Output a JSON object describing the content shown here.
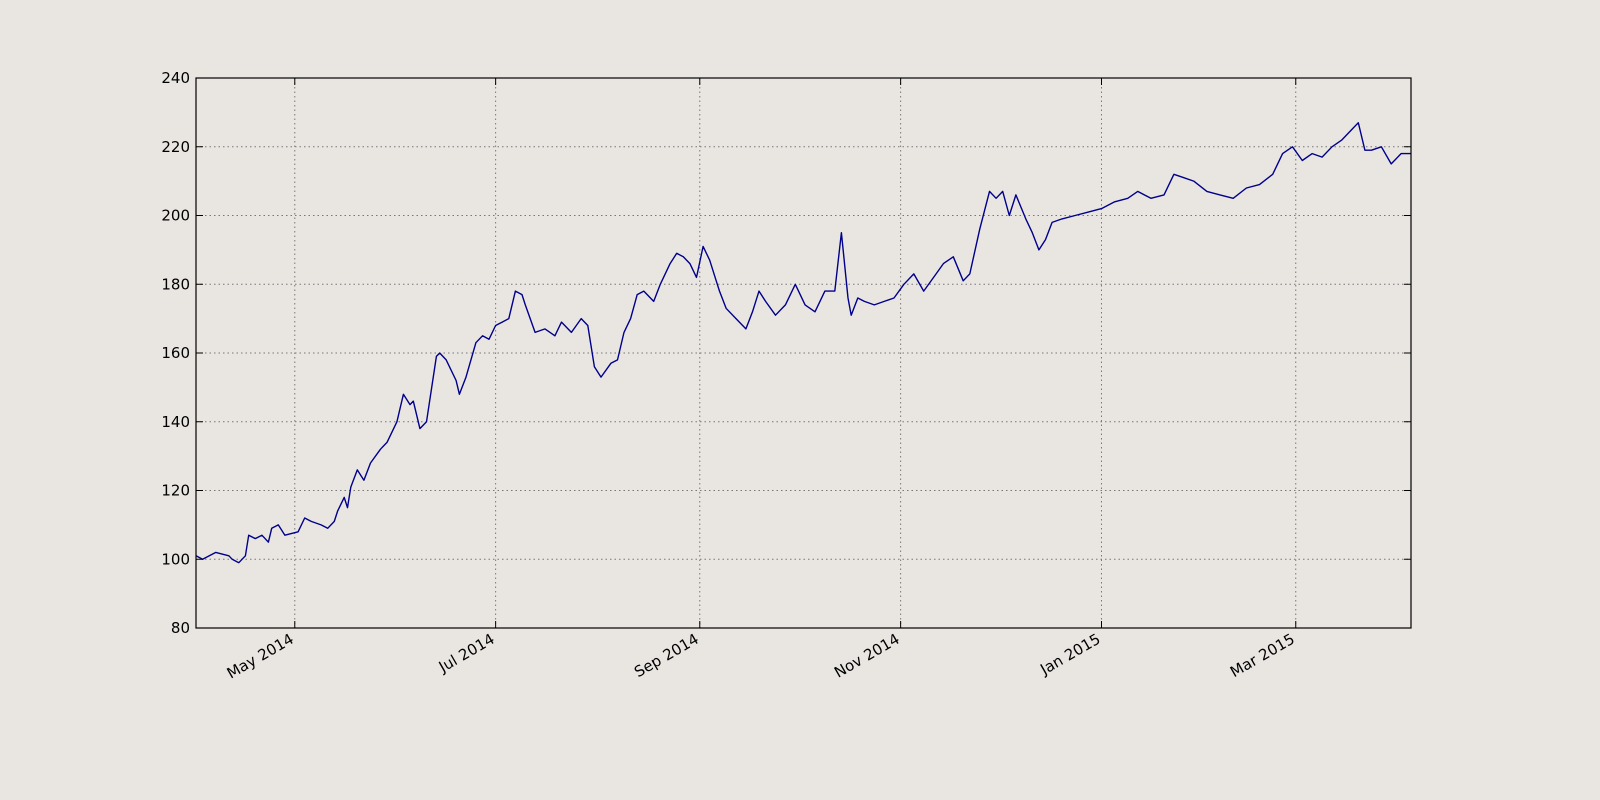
{
  "chart_data": {
    "type": "line",
    "title": "",
    "xlabel": "",
    "ylabel": "",
    "grid": true,
    "ylim": [
      80,
      240
    ],
    "xlim": [
      "2014-04-01",
      "2015-04-05"
    ],
    "yticks": [
      80,
      100,
      120,
      140,
      160,
      180,
      200,
      220,
      240
    ],
    "yticklabels": [
      "80",
      "100",
      "120",
      "140",
      "160",
      "180",
      "200",
      "220",
      "240"
    ],
    "xticks": [
      "2014-05-01",
      "2014-07-01",
      "2014-09-01",
      "2014-11-01",
      "2015-01-01",
      "2015-03-01"
    ],
    "xticklabels": [
      "May 2014",
      "Jul 2014",
      "Sep 2014",
      "Nov 2014",
      "Jan 2015",
      "Mar 2015"
    ],
    "colors": {
      "line": "#00008b",
      "background": "#e9e6e2",
      "axes": "#000000",
      "grid": "#777777"
    },
    "series": [
      {
        "x": [
          "2014-04-01",
          "2014-04-03",
          "2014-04-07",
          "2014-04-11",
          "2014-04-12",
          "2014-04-14",
          "2014-04-16",
          "2014-04-17",
          "2014-04-19",
          "2014-04-21",
          "2014-04-23",
          "2014-04-24",
          "2014-04-26",
          "2014-04-28",
          "2014-05-02",
          "2014-05-04",
          "2014-05-06",
          "2014-05-09",
          "2014-05-11",
          "2014-05-13",
          "2014-05-14",
          "2014-05-16",
          "2014-05-17",
          "2014-05-18",
          "2014-05-20",
          "2014-05-22",
          "2014-05-24",
          "2014-05-27",
          "2014-05-29",
          "2014-06-01",
          "2014-06-03",
          "2014-06-05",
          "2014-06-06",
          "2014-06-08",
          "2014-06-10",
          "2014-06-13",
          "2014-06-14",
          "2014-06-16",
          "2014-06-19",
          "2014-06-20",
          "2014-06-22",
          "2014-06-25",
          "2014-06-27",
          "2014-06-29",
          "2014-07-01",
          "2014-07-03",
          "2014-07-05",
          "2014-07-07",
          "2014-07-09",
          "2014-07-10",
          "2014-07-13",
          "2014-07-16",
          "2014-07-19",
          "2014-07-21",
          "2014-07-24",
          "2014-07-27",
          "2014-07-29",
          "2014-07-31",
          "2014-08-02",
          "2014-08-05",
          "2014-08-07",
          "2014-08-09",
          "2014-08-11",
          "2014-08-13",
          "2014-08-15",
          "2014-08-18",
          "2014-08-20",
          "2014-08-23",
          "2014-08-25",
          "2014-08-27",
          "2014-08-29",
          "2014-08-31",
          "2014-09-02",
          "2014-09-04",
          "2014-09-06",
          "2014-09-07",
          "2014-09-09",
          "2014-09-12",
          "2014-09-15",
          "2014-09-17",
          "2014-09-19",
          "2014-09-21",
          "2014-09-24",
          "2014-09-27",
          "2014-09-30",
          "2014-10-03",
          "2014-10-06",
          "2014-10-09",
          "2014-10-12",
          "2014-10-14",
          "2014-10-16",
          "2014-10-17",
          "2014-10-19",
          "2014-10-21",
          "2014-10-24",
          "2014-10-27",
          "2014-10-30",
          "2014-11-02",
          "2014-11-05",
          "2014-11-08",
          "2014-11-11",
          "2014-11-14",
          "2014-11-17",
          "2014-11-20",
          "2014-11-22",
          "2014-11-25",
          "2014-11-28",
          "2014-11-30",
          "2014-12-02",
          "2014-12-04",
          "2014-12-06",
          "2014-12-09",
          "2014-12-11",
          "2014-12-13",
          "2014-12-15",
          "2014-12-17",
          "2014-12-20",
          "2014-12-24",
          "2014-12-28",
          "2015-01-01",
          "2015-01-05",
          "2015-01-09",
          "2015-01-12",
          "2015-01-16",
          "2015-01-20",
          "2015-01-23",
          "2015-01-26",
          "2015-01-29",
          "2015-02-02",
          "2015-02-06",
          "2015-02-10",
          "2015-02-14",
          "2015-02-18",
          "2015-02-22",
          "2015-02-25",
          "2015-02-28",
          "2015-03-03",
          "2015-03-06",
          "2015-03-09",
          "2015-03-12",
          "2015-03-15",
          "2015-03-18",
          "2015-03-20",
          "2015-03-22",
          "2015-03-24",
          "2015-03-27",
          "2015-03-30",
          "2015-04-02",
          "2015-04-05"
        ],
        "y": [
          101,
          100,
          102,
          101,
          100,
          99,
          101,
          107,
          106,
          107,
          105,
          109,
          110,
          107,
          108,
          112,
          111,
          110,
          109,
          111,
          114,
          118,
          115,
          121,
          126,
          123,
          128,
          132,
          134,
          140,
          148,
          145,
          146,
          138,
          140,
          159,
          160,
          158,
          152,
          148,
          153,
          163,
          165,
          164,
          168,
          169,
          170,
          178,
          177,
          174,
          166,
          167,
          165,
          169,
          166,
          170,
          168,
          156,
          153,
          157,
          158,
          166,
          170,
          177,
          178,
          175,
          180,
          186,
          189,
          188,
          186,
          182,
          191,
          187,
          181,
          178,
          173,
          170,
          167,
          172,
          178,
          175,
          171,
          174,
          180,
          174,
          172,
          178,
          178,
          195,
          176,
          171,
          176,
          175,
          174,
          175,
          176,
          180,
          183,
          178,
          182,
          186,
          188,
          181,
          183,
          196,
          207,
          205,
          207,
          200,
          206,
          199,
          195,
          190,
          193,
          198,
          199,
          200,
          201,
          202,
          204,
          205,
          207,
          205,
          206,
          212,
          211,
          210,
          207,
          206,
          205,
          208,
          209,
          212,
          218,
          220,
          216,
          218,
          217,
          220,
          222,
          225,
          227,
          219,
          219,
          220,
          215,
          218,
          218
        ]
      }
    ]
  }
}
